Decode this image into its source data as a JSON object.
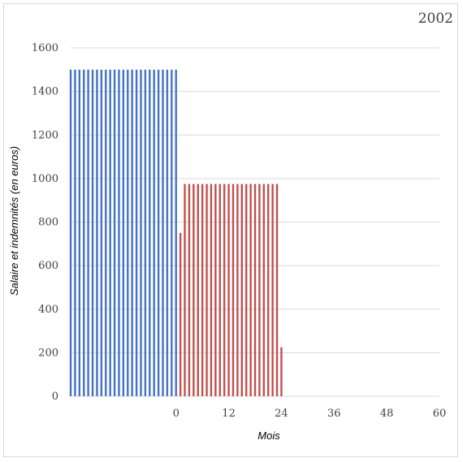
{
  "chart_data": {
    "type": "bar",
    "title": "2002",
    "xlabel": "Mois",
    "ylabel": "Salaire et indemnités (en euros)",
    "ylim": [
      0,
      1600
    ],
    "xlim": [
      -24,
      60
    ],
    "yticks": [
      0,
      200,
      400,
      600,
      800,
      1000,
      1200,
      1400,
      1600
    ],
    "xticks": [
      0,
      12,
      24,
      36,
      48,
      60
    ],
    "grid": true,
    "colors": {
      "salaire": "#4472c4",
      "indemnites": "#c0504d",
      "grid": "#d9d9d9"
    },
    "series": [
      {
        "x": [
          -24,
          -23,
          -22,
          -21,
          -20,
          -19,
          -18,
          -17,
          -16,
          -15,
          -14,
          -13,
          -12,
          -11,
          -10,
          -9,
          -8,
          -7,
          -6,
          -5,
          -4,
          -3,
          -2,
          -1,
          0
        ],
        "values": [
          1500,
          1500,
          1500,
          1500,
          1500,
          1500,
          1500,
          1500,
          1500,
          1500,
          1500,
          1500,
          1500,
          1500,
          1500,
          1500,
          1500,
          1500,
          1500,
          1500,
          1500,
          1500,
          1500,
          1500,
          1500
        ]
      },
      {
        "x": [
          1,
          2,
          3,
          4,
          5,
          6,
          7,
          8,
          9,
          10,
          11,
          12,
          13,
          14,
          15,
          16,
          17,
          18,
          19,
          20,
          21,
          22,
          23,
          24
        ],
        "values": [
          750,
          975,
          975,
          975,
          975,
          975,
          975,
          975,
          975,
          975,
          975,
          975,
          975,
          975,
          975,
          975,
          975,
          975,
          975,
          975,
          975,
          975,
          975,
          225
        ]
      }
    ]
  }
}
